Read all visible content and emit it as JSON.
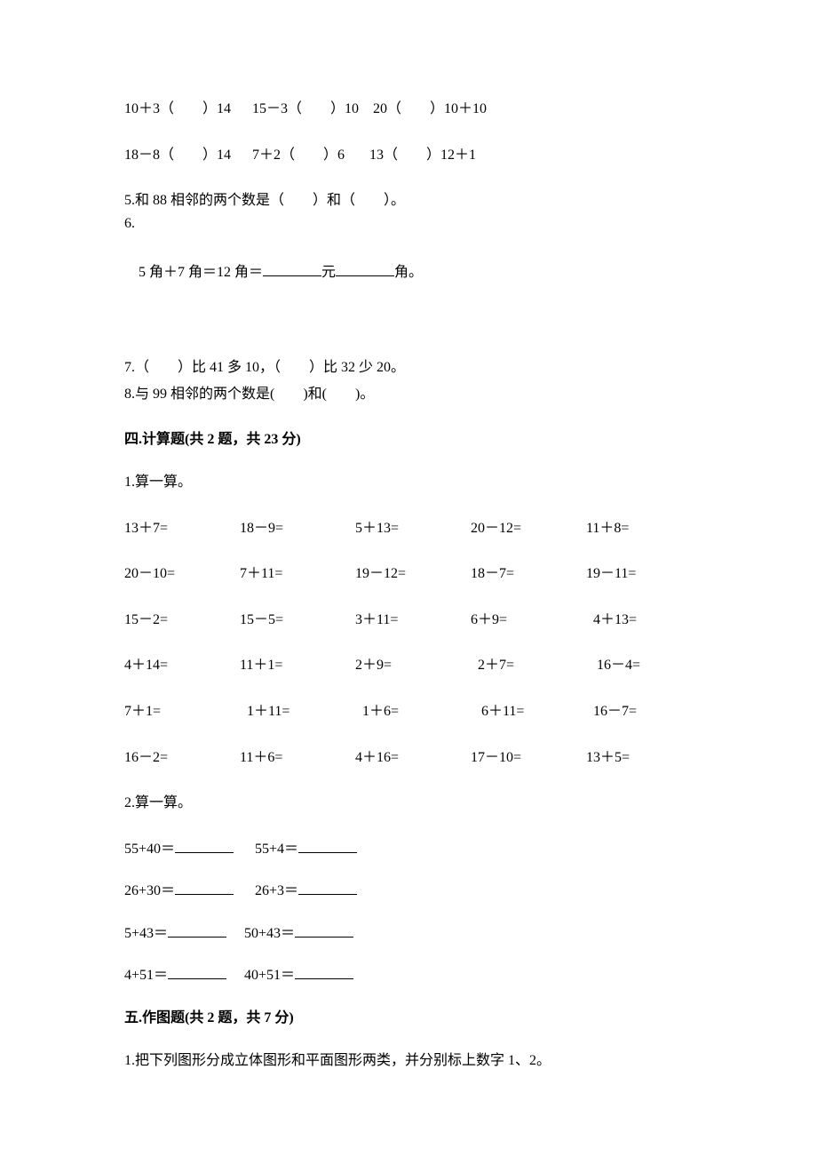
{
  "compareRows": [
    {
      "a": "10＋3（　　）14",
      "b": "15－3（　　）10",
      "c": "20（　　）10＋10"
    },
    {
      "a": "18－8（　　）14",
      "b": "7＋2（　　）6",
      "c": "13（　　）12＋1"
    }
  ],
  "q5": "5.和 88 相邻的两个数是（　　）和（　　）。",
  "q6label": "6.",
  "q6line_prefix": "5 角＋7 角＝12 角＝",
  "q6line_mid": "元",
  "q6line_suffix": "角。",
  "q7": "7.（　　）比 41 多 10，（　　）比 32 少 20。",
  "q8": "8.与 99 相邻的两个数是(　　)和(　　)。",
  "sec4": {
    "heading": "四.计算题(共 2 题，共 23 分)",
    "q1label": "1.算一算。",
    "grid": [
      [
        "13＋7=",
        "18－9=",
        "5＋13=",
        "20－12=",
        "11＋8="
      ],
      [
        "20－10=",
        "7＋11=",
        "19－12=",
        "18－7=",
        "19－11="
      ],
      [
        "15－2=",
        "15－5=",
        "3＋11=",
        "6＋9=",
        "  4＋13="
      ],
      [
        "4＋14=",
        "11＋1=",
        "2＋9=",
        "  2＋7=",
        "   16－4="
      ],
      [
        "7＋1=",
        "  1＋11=",
        "  1＋6=",
        "   6＋11=",
        "  16－7="
      ],
      [
        "16－2=",
        "11＋6=",
        "4＋16=",
        "17－10=",
        "13＋5="
      ]
    ],
    "q2label": "2.算一算。",
    "pairs": [
      {
        "a": "55+40＝",
        "b": "55+4＝"
      },
      {
        "a": "26+30＝",
        "b": "26+3＝"
      },
      {
        "a": "5+43＝",
        "b": "50+43＝"
      },
      {
        "a": "4+51＝",
        "b": "40+51＝"
      }
    ]
  },
  "sec5": {
    "heading": "五.作图题(共 2 题，共 7 分)",
    "q1": "1.把下列图形分成立体图形和平面图形两类，并分别标上数字 1、2。"
  }
}
